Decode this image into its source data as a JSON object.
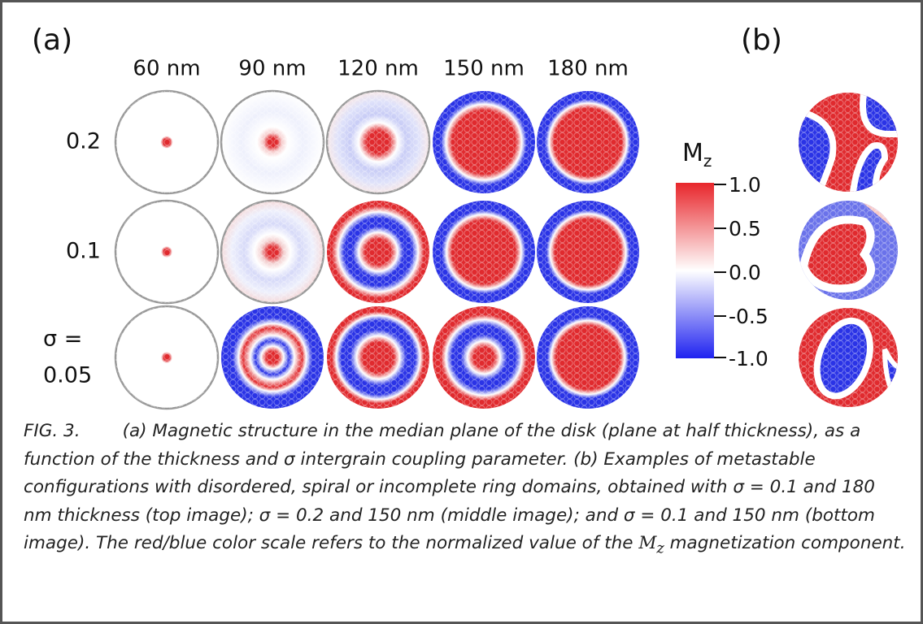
{
  "panel_a": {
    "label": "(a)",
    "column_labels": [
      "60 nm",
      "90 nm",
      "120 nm",
      "150 nm",
      "180 nm"
    ],
    "row_labels": [
      [
        "0.2"
      ],
      [
        "0.1"
      ],
      [
        "σ =",
        "0.05"
      ]
    ]
  },
  "colorbar": {
    "title": "M",
    "subscript": "z",
    "tick_labels": [
      "1.0",
      "0.5",
      "0.0",
      "-0.5",
      "-1.0"
    ]
  },
  "panel_b": {
    "label": "(b)"
  },
  "caption": {
    "figure_label": "FIG. 3.",
    "text_before": "(a) Magnetic structure in the median plane of the disk (plane at half thickness), as a function of the thickness and σ intergrain coupling parameter. (b) Examples of metastable configurations with disordered, spiral or incomplete ring domains, obtained with σ = 0.1 and 180 nm thickness (top image); σ = 0.2 and 150 nm (middle image); and σ = 0.1 and 150 nm (bottom image). The red/blue color scale refers to the normalized value of the ",
    "symbol": "M",
    "symbol_subscript": "z",
    "text_after": " magnetization component."
  }
}
